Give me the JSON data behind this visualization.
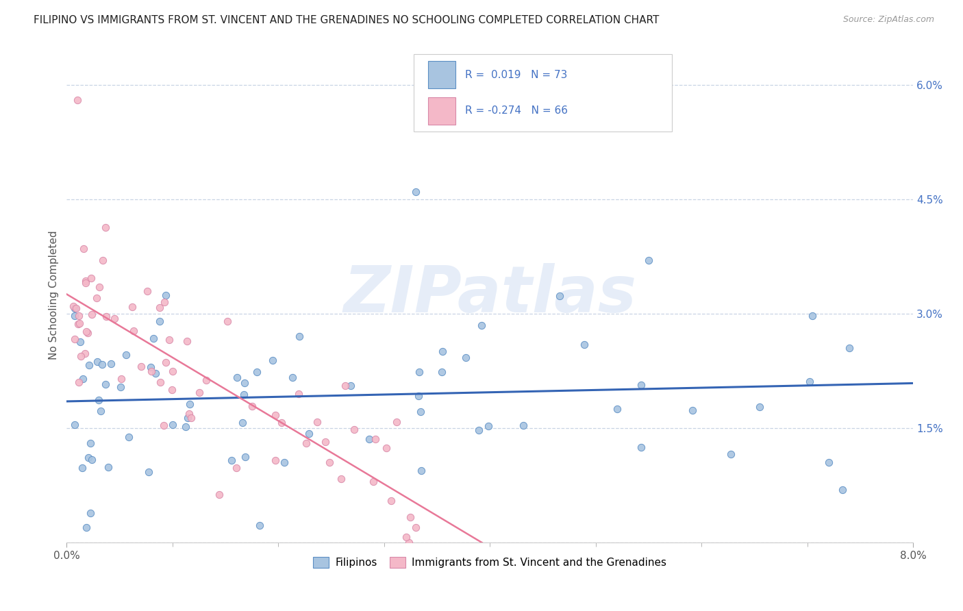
{
  "title": "FILIPINO VS IMMIGRANTS FROM ST. VINCENT AND THE GRENADINES NO SCHOOLING COMPLETED CORRELATION CHART",
  "source": "Source: ZipAtlas.com",
  "ylabel": "No Schooling Completed",
  "xlim": [
    0.0,
    0.08
  ],
  "ylim": [
    0.0,
    0.065
  ],
  "ytick_vals": [
    0.0,
    0.015,
    0.03,
    0.045,
    0.06
  ],
  "ytick_labels": [
    "",
    "1.5%",
    "3.0%",
    "4.5%",
    "6.0%"
  ],
  "xtick_vals": [
    0.0,
    0.08
  ],
  "xtick_labels": [
    "0.0%",
    "8.0%"
  ],
  "filipino_color": "#a8c4e0",
  "filipino_edge": "#5b8ec4",
  "svg_color": "#f4b8c8",
  "svg_edge": "#d888a8",
  "trend_filipino_color": "#3464b4",
  "trend_svg_color": "#e87898",
  "grid_color": "#c8d4e4",
  "R_filipino": 0.019,
  "N_filipino": 73,
  "R_svg": -0.274,
  "N_svg": 66,
  "legend_label_1": "Filipinos",
  "legend_label_2": "Immigrants from St. Vincent and the Grenadines",
  "watermark": "ZIPatlas",
  "title_fontsize": 11,
  "source_fontsize": 9,
  "axis_fontsize": 11,
  "legend_fontsize": 11
}
